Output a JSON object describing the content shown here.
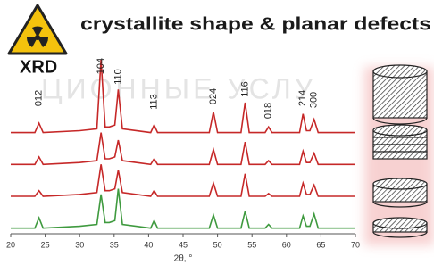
{
  "title": "crystallite shape & planar defects",
  "badge": "XRD",
  "watermark": "ЦИОННЫЕ УСЛУ",
  "chart_data": {
    "type": "line",
    "xlabel": "2θ, °",
    "x": [
      20,
      23.5,
      24.1,
      24.7,
      30,
      32.5,
      33.1,
      33.7,
      34.3,
      35.1,
      35.6,
      36.2,
      40.3,
      40.8,
      41.3,
      48.8,
      49.4,
      50,
      53.4,
      54,
      54.6,
      56.9,
      57.4,
      57.9,
      61.9,
      62.4,
      62.9,
      63.4,
      64,
      64.6,
      70
    ],
    "series": [
      {
        "color": "#c62828",
        "values": [
          54,
          54,
          59,
          54,
          55,
          56,
          93,
          57,
          57,
          58,
          77,
          56,
          54,
          58,
          54,
          54,
          65,
          54,
          54,
          70,
          54,
          54,
          57,
          54,
          54,
          64,
          55,
          55,
          61,
          54,
          54
        ]
      },
      {
        "color": "#c62828",
        "values": [
          37,
          37,
          41,
          37,
          38,
          39,
          54,
          40,
          40,
          41,
          50,
          39,
          37,
          40,
          37,
          37,
          45,
          37,
          37,
          49,
          37,
          37,
          39,
          37,
          37,
          44,
          38,
          38,
          43,
          37,
          37
        ]
      },
      {
        "color": "#c62828",
        "values": [
          20,
          20,
          23,
          20,
          21,
          22,
          37,
          23,
          23,
          24,
          34,
          22,
          20,
          23,
          20,
          20,
          27,
          20,
          20,
          32,
          20,
          20,
          21.5,
          20,
          20,
          27,
          21,
          21,
          26,
          20,
          20
        ]
      },
      {
        "color": "#3f9a3f",
        "values": [
          3,
          3,
          8.5,
          3,
          4,
          5,
          21,
          6,
          6,
          7,
          24,
          5,
          3,
          7,
          3,
          3,
          10,
          3,
          3,
          12,
          3,
          3,
          5,
          3,
          3,
          9.5,
          4,
          4,
          10.5,
          3,
          3
        ]
      }
    ],
    "annotations": [
      {
        "text": "012",
        "x": 24.1
      },
      {
        "text": "104",
        "x": 33.1
      },
      {
        "text": "110",
        "x": 35.6
      },
      {
        "text": "113",
        "x": 40.8
      },
      {
        "text": "024",
        "x": 49.4
      },
      {
        "text": "116",
        "x": 54
      },
      {
        "text": "018",
        "x": 57.4
      },
      {
        "text": "214",
        "x": 62.4
      },
      {
        "text": "300",
        "x": 64
      }
    ],
    "xlim": [
      20,
      70
    ],
    "xticks": [
      20,
      25,
      30,
      35,
      40,
      45,
      50,
      55,
      60,
      65,
      70
    ],
    "ylim": [
      0,
      100
    ]
  }
}
